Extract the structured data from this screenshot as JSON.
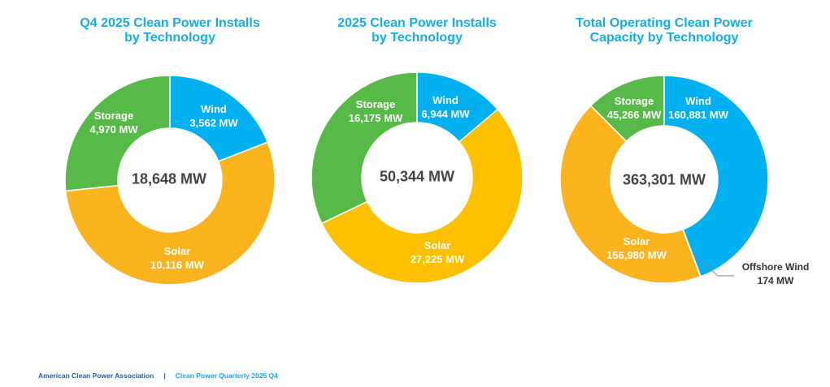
{
  "chart_data": [
    {
      "type": "pie",
      "title": "Q4 2025 Clean Power Installs by Technology",
      "title_lines": [
        "Q4 2025 Clean Power Installs",
        "by Technology"
      ],
      "total_label": "18,648 MW",
      "total": 18648,
      "slices": [
        {
          "name": "Wind",
          "value": 3562,
          "label": "3,562 MW",
          "color": "#00B0F0"
        },
        {
          "name": "Solar",
          "value": 10116,
          "label": "10,116 MW",
          "color": "#FBB41D"
        },
        {
          "name": "Storage",
          "value": 4970,
          "label": "4,970 MW",
          "color": "#57B947"
        }
      ]
    },
    {
      "type": "pie",
      "title": "2025 Clean Power Installs by Technology",
      "title_lines": [
        "2025 Clean Power Installs",
        "by Technology"
      ],
      "total_label": "50,344 MW",
      "total": 50344,
      "slices": [
        {
          "name": "Wind",
          "value": 6944,
          "label": "6,944 MW",
          "color": "#00B0F0"
        },
        {
          "name": "Solar",
          "value": 27225,
          "label": "27,225 MW",
          "color": "#FFC000"
        },
        {
          "name": "Storage",
          "value": 16175,
          "label": "16,175 MW",
          "color": "#57B947"
        }
      ]
    },
    {
      "type": "pie",
      "title": "Total Operating Clean Power Capacity by Technology",
      "title_lines": [
        "Total Operating Clean Power",
        "Capacity by Technology"
      ],
      "total_label": "363,301 MW",
      "total": 363301,
      "slices": [
        {
          "name": "Wind",
          "value": 160881,
          "label": "160,881 MW",
          "color": "#00B0F0"
        },
        {
          "name": "Offshore Wind",
          "value": 174,
          "label": "174 MW",
          "color": "#0077B6"
        },
        {
          "name": "Solar",
          "value": 156980,
          "label": "156,980 MW",
          "color": "#FBB41D"
        },
        {
          "name": "Storage",
          "value": 45266,
          "label": "45,266 MW",
          "color": "#57B947"
        }
      ]
    }
  ],
  "footer": {
    "org": "American Clean Power Association",
    "separator": "|",
    "report": "Clean Power Quarterly 2025 Q4"
  }
}
